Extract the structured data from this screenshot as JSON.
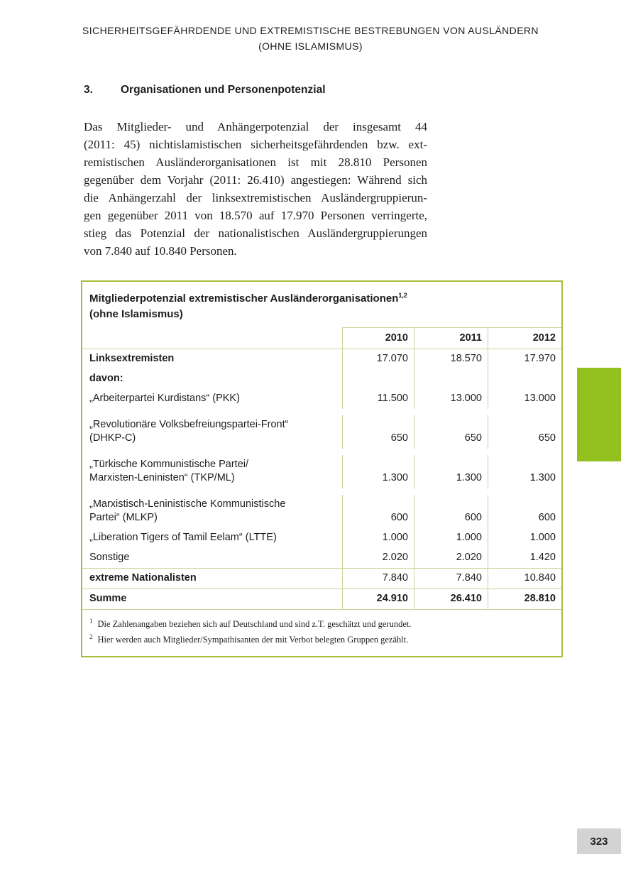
{
  "page_header": {
    "line1": "SICHERHEITSGEFÄHRDENDE UND EXTREMISTISCHE BESTREBUNGEN VON AUSLÄNDERN",
    "line2": "(OHNE ISLAMISMUS)"
  },
  "section": {
    "number": "3.",
    "title": "Organisationen und Personenpotenzial"
  },
  "paragraph_lines": {
    "l1": "Das Mitglieder- und Anhängerpotenzial der insgesamt 44",
    "l2": "(2011: 45) nichtislamistischen sicherheitsgefährdenden bzw. ext-",
    "l3": "remistischen Ausländerorganisationen ist mit 28.810 Personen",
    "l4": "gegenüber dem Vorjahr (2011: 26.410) angestiegen: Während sich",
    "l5": "die Anhängerzahl der linksextremistischen Ausländergruppierun-",
    "l6": "gen gegenüber 2011 von 18.570 auf 17.970 Personen verringerte,",
    "l7": "stieg das Potenzial der nationalistischen Ausländergruppierungen",
    "l8": "von 7.840 auf 10.840 Personen."
  },
  "table": {
    "title_line1": "Mitgliederpotenzial extremistischer Ausländerorganisationen",
    "title_sup": "1,2",
    "title_line2": "(ohne Islamismus)",
    "col_headers": [
      "2010",
      "2011",
      "2012"
    ],
    "rows": [
      {
        "label": "Linksextremisten",
        "values": [
          "17.070",
          "18.570",
          "17.970"
        ]
      },
      {
        "label": "davon:",
        "values": [
          "",
          "",
          ""
        ]
      },
      {
        "label": "„Arbeiterpartei Kurdistans“ (PKK)",
        "values": [
          "11.500",
          "13.000",
          "13.000"
        ]
      },
      {
        "label": "„Revolutionäre Volksbefreiungspartei-Front“\n(DHKP-C)",
        "values": [
          "650",
          "650",
          "650"
        ]
      },
      {
        "label": "„Türkische Kommunistische Partei/\nMarxisten-Leninisten“ (TKP/ML)",
        "values": [
          "1.300",
          "1.300",
          "1.300"
        ]
      },
      {
        "label": "„Marxistisch-Leninistische Kommunistische\nPartei“ (MLKP)",
        "values": [
          "600",
          "600",
          "600"
        ]
      },
      {
        "label": "„Liberation Tigers of Tamil Eelam“ (LTTE)",
        "values": [
          "1.000",
          "1.000",
          "1.000"
        ]
      },
      {
        "label": "Sonstige",
        "values": [
          "2.020",
          "2.020",
          "1.420"
        ]
      },
      {
        "label": "extreme Nationalisten",
        "values": [
          "7.840",
          "7.840",
          "10.840"
        ]
      },
      {
        "label": "Summe",
        "values": [
          "24.910",
          "26.410",
          "28.810"
        ]
      }
    ],
    "footnotes": [
      {
        "marker": "1",
        "text": "Die Zahlenangaben beziehen sich auf Deutschland und sind z.T. geschätzt und gerundet."
      },
      {
        "marker": "2",
        "text": "Hier werden auch Mitglieder/Sympathisanten der mit Verbot belegten Gruppen gezählt."
      }
    ]
  },
  "page_number": "323",
  "colors": {
    "table_border": "#a4bf3c",
    "grid_line": "#cbd497",
    "chapter_tab": "#93c01f",
    "page_number_bg": "#d3d3d3",
    "text": "#1d1d1b"
  }
}
